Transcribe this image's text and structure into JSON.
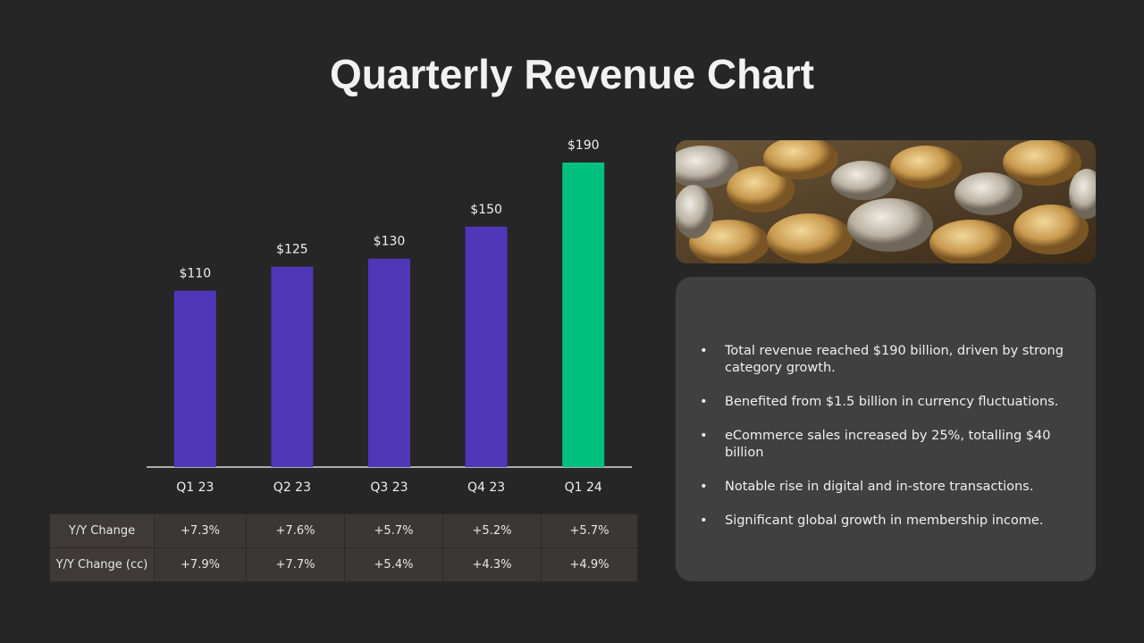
{
  "chart_data": {
    "type": "bar",
    "title": "Quarterly Revenue Chart",
    "categories": [
      "Q1 23",
      "Q2 23",
      "Q3 23",
      "Q4 23",
      "Q1 24"
    ],
    "values": [
      110,
      125,
      130,
      150,
      190
    ],
    "value_labels": [
      "$110",
      "$125",
      "$130",
      "$150",
      "$190"
    ],
    "colors": [
      "#4f37b8",
      "#4f37b8",
      "#4f37b8",
      "#4f37b8",
      "#00c07f"
    ]
  },
  "table": {
    "rows": [
      [
        "Y/Y Change",
        "+7.3%",
        "+7.6%",
        "+5.7%",
        "+5.2%",
        "+5.7%"
      ],
      [
        "Y/Y Change (cc)",
        "+7.9%",
        "+7.7%",
        "+5.4%",
        "+4.3%",
        "+4.9%"
      ]
    ]
  },
  "notes": [
    "Total revenue reached $190 billion, driven by strong category growth.",
    "Benefited from $1.5 billion in currency fluctuations.",
    "eCommerce sales increased by 25%, totalling $40 billion",
    "Notable rise in digital and in-store transactions.",
    "Significant global growth in membership income."
  ]
}
